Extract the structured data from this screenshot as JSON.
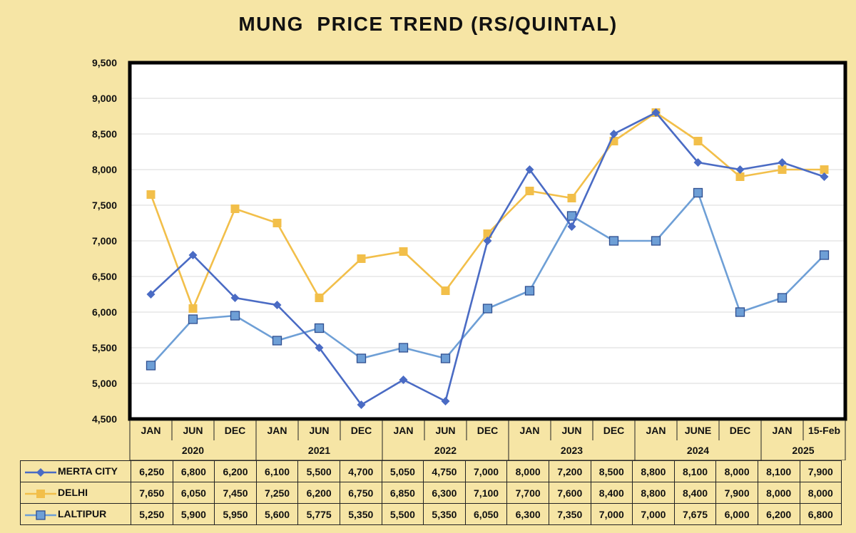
{
  "chart_data": {
    "type": "line",
    "title": "MUNG  PRICE TREND (RS/QUINTAL)",
    "categories": [
      "JAN",
      "JUN",
      "DEC",
      "JAN",
      "JUN",
      "DEC",
      "JAN",
      "JUN",
      "DEC",
      "JAN",
      "JUN",
      "DEC",
      "JAN",
      "JUNE",
      "DEC",
      "JAN",
      "15-Feb"
    ],
    "years": [
      {
        "label": "2020",
        "start": 0,
        "end": 2
      },
      {
        "label": "2021",
        "start": 3,
        "end": 5
      },
      {
        "label": "2022",
        "start": 6,
        "end": 8
      },
      {
        "label": "2023",
        "start": 9,
        "end": 11
      },
      {
        "label": "2024",
        "start": 12,
        "end": 14
      },
      {
        "label": "2025",
        "start": 15,
        "end": 16
      }
    ],
    "ylim": [
      4500,
      9500
    ],
    "yticks": [
      4500,
      5000,
      5500,
      6000,
      6500,
      7000,
      7500,
      8000,
      8500,
      9000,
      9500
    ],
    "grid": true,
    "series": [
      {
        "name": "MERTA CITY",
        "color": "#4a6bc4",
        "marker": "diamond",
        "values": [
          6250,
          6800,
          6200,
          6100,
          5500,
          4700,
          5050,
          4750,
          7000,
          8000,
          7200,
          8500,
          8800,
          8100,
          8000,
          8100,
          7900
        ]
      },
      {
        "name": "DELHI",
        "color": "#f2bf4a",
        "marker": "square",
        "values": [
          7650,
          6050,
          7450,
          7250,
          6200,
          6750,
          6850,
          6300,
          7100,
          7700,
          7600,
          8400,
          8800,
          8400,
          7900,
          8000,
          8000
        ]
      },
      {
        "name": "LALTIPUR",
        "color": "#6e9fd6",
        "marker": "square-outline",
        "values": [
          5250,
          5900,
          5950,
          5600,
          5775,
          5350,
          5500,
          5350,
          6050,
          6300,
          7350,
          7000,
          7000,
          7675,
          6000,
          6200,
          6800
        ]
      }
    ],
    "data_table": {
      "rows": [
        {
          "label": "MERTA CITY",
          "values": [
            "6,250",
            "6,800",
            "6,200",
            "6,100",
            "5,500",
            "4,700",
            "5,050",
            "4,750",
            "7,000",
            "8,000",
            "7,200",
            "8,500",
            "8,800",
            "8,100",
            "8,000",
            "8,100",
            "7,900"
          ]
        },
        {
          "label": "DELHI",
          "values": [
            "7,650",
            "6,050",
            "7,450",
            "7,250",
            "6,200",
            "6,750",
            "6,850",
            "6,300",
            "7,100",
            "7,700",
            "7,600",
            "8,400",
            "8,800",
            "8,400",
            "7,900",
            "8,000",
            "8,000"
          ]
        },
        {
          "label": "LALTIPUR",
          "values": [
            "5,250",
            "5,900",
            "5,950",
            "5,600",
            "5,775",
            "5,350",
            "5,500",
            "5,350",
            "6,050",
            "6,300",
            "7,350",
            "7,000",
            "7,000",
            "7,675",
            "6,000",
            "6,200",
            "6,800"
          ]
        }
      ]
    }
  }
}
